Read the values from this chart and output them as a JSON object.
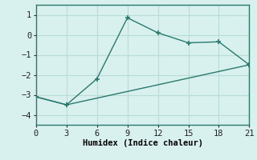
{
  "line1_x": [
    0,
    3,
    6,
    9,
    12,
    15,
    18,
    21
  ],
  "line1_y": [
    -3.1,
    -3.5,
    -2.2,
    0.85,
    0.1,
    -0.4,
    -0.35,
    -1.5
  ],
  "line2_x": [
    0,
    3,
    21
  ],
  "line2_y": [
    -3.1,
    -3.5,
    -1.5
  ],
  "line_color": "#2a7a6e",
  "bg_color": "#d8f0ee",
  "grid_color": "#b8dcd8",
  "xlabel": "Humidex (Indice chaleur)",
  "xlim": [
    0,
    21
  ],
  "ylim": [
    -4.5,
    1.5
  ],
  "xticks": [
    0,
    3,
    6,
    9,
    12,
    15,
    18,
    21
  ],
  "yticks": [
    -4,
    -3,
    -2,
    -1,
    0,
    1
  ],
  "font_size": 7.5
}
